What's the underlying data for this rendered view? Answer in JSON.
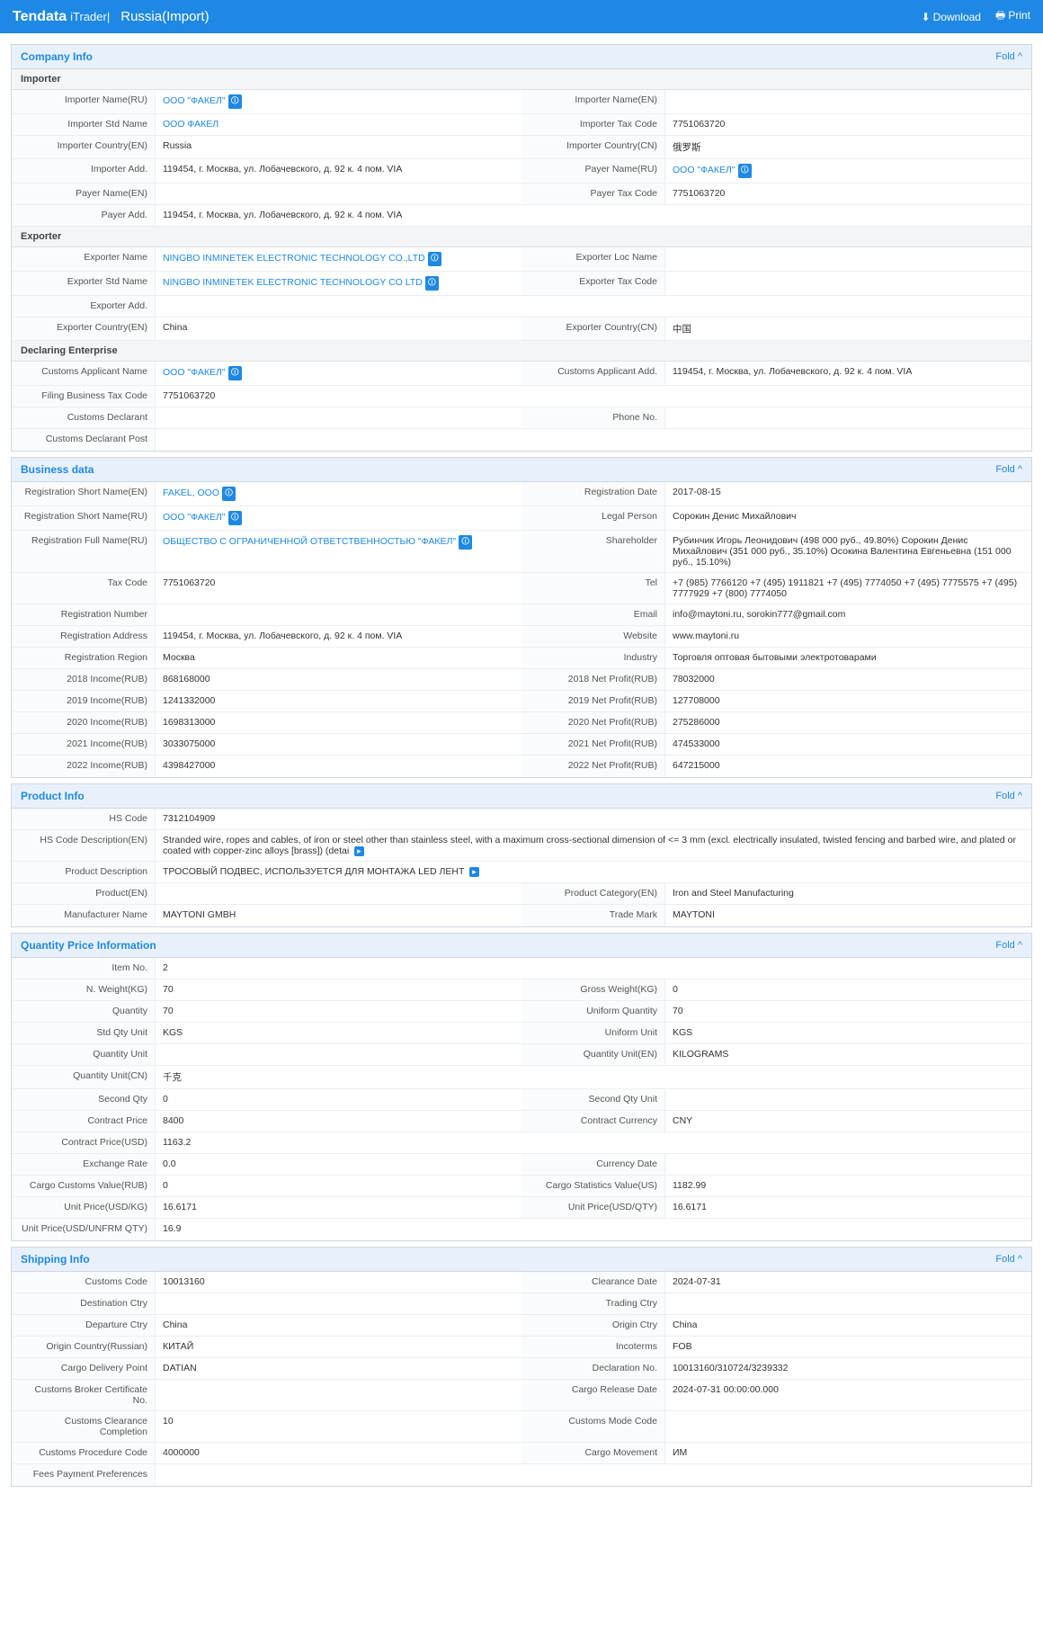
{
  "header": {
    "logo": "Tendata",
    "sublogo": "iTrader|",
    "title": "Russia(Import)",
    "download": "Download",
    "print": "Print"
  },
  "fold": "Fold ^",
  "sections": {
    "companyInfo": "Company Info",
    "businessData": "Business data",
    "productInfo": "Product Info",
    "qtyPrice": "Quantity Price Information",
    "shipping": "Shipping Info"
  },
  "sub": {
    "importer": "Importer",
    "exporter": "Exporter",
    "declaring": "Declaring Enterprise"
  },
  "lbl": {
    "impNameRU": "Importer Name(RU)",
    "impNameEN": "Importer Name(EN)",
    "impStdName": "Importer Std Name",
    "impTaxCode": "Importer Tax Code",
    "impCtryEN": "Importer Country(EN)",
    "impCtryCN": "Importer Country(CN)",
    "impAdd": "Importer Add.",
    "payerNameRU": "Payer Name(RU)",
    "payerNameEN": "Payer Name(EN)",
    "payerTaxCode": "Payer Tax Code",
    "payerAdd": "Payer Add.",
    "expName": "Exporter Name",
    "expLocName": "Exporter Loc Name",
    "expStdName": "Exporter Std Name",
    "expTaxCode": "Exporter Tax Code",
    "expAdd": "Exporter Add.",
    "expCtryEN": "Exporter Country(EN)",
    "expCtryCN": "Exporter Country(CN)",
    "custAppName": "Customs Applicant Name",
    "custAppAdd": "Customs Applicant Add.",
    "filingTax": "Filing Business Tax Code",
    "custDecl": "Customs Declarant",
    "phoneNo": "Phone No.",
    "custDeclPost": "Customs Declarant Post",
    "regShortEN": "Registration Short Name(EN)",
    "regDate": "Registration Date",
    "regShortRU": "Registration Short Name(RU)",
    "legalPerson": "Legal Person",
    "regFullRU": "Registration Full Name(RU)",
    "shareholder": "Shareholder",
    "taxCode": "Tax Code",
    "tel": "Tel",
    "regNum": "Registration Number",
    "email": "Email",
    "regAddr": "Registration Address",
    "website": "Website",
    "regRegion": "Registration Region",
    "industry": "Industry",
    "inc2018": "2018 Income(RUB)",
    "np2018": "2018 Net Profit(RUB)",
    "inc2019": "2019 Income(RUB)",
    "np2019": "2019 Net Profit(RUB)",
    "inc2020": "2020 Income(RUB)",
    "np2020": "2020 Net Profit(RUB)",
    "inc2021": "2021 Income(RUB)",
    "np2021": "2021 Net Profit(RUB)",
    "inc2022": "2022 Income(RUB)",
    "np2022": "2022 Net Profit(RUB)",
    "hsCode": "HS Code",
    "hsDescEN": "HS Code Description(EN)",
    "prodDesc": "Product Description",
    "prodEN": "Product(EN)",
    "prodCatEN": "Product Category(EN)",
    "mfrName": "Manufacturer Name",
    "tradeMark": "Trade Mark",
    "itemNo": "Item No.",
    "nWeight": "N. Weight(KG)",
    "gWeight": "Gross Weight(KG)",
    "qty": "Quantity",
    "uQty": "Uniform Quantity",
    "stdQtyUnit": "Std Qty Unit",
    "uUnit": "Uniform Unit",
    "qtyUnit": "Quantity Unit",
    "qtyUnitEN": "Quantity Unit(EN)",
    "qtyUnitCN": "Quantity Unit(CN)",
    "secQty": "Second Qty",
    "secQtyUnit": "Second Qty Unit",
    "cPrice": "Contract Price",
    "cCurr": "Contract Currency",
    "cPriceUSD": "Contract Price(USD)",
    "exRate": "Exchange Rate",
    "currDate": "Currency Date",
    "ccvRUB": "Cargo Customs Value(RUB)",
    "csvUS": "Cargo Statistics Value(US)",
    "upKG": "Unit Price(USD/KG)",
    "upQTY": "Unit Price(USD/QTY)",
    "upUNFRM": "Unit Price(USD/UNFRM QTY)",
    "custCode": "Customs Code",
    "clearDate": "Clearance Date",
    "destCtry": "Destination Ctry",
    "tradeCtry": "Trading Ctry",
    "depCtry": "Departure Ctry",
    "origCtry": "Origin Ctry",
    "origCtryRU": "Origin Country(Russian)",
    "incoterms": "Incoterms",
    "cargoDeliv": "Cargo Delivery Point",
    "declNo": "Declaration No.",
    "brokerCert": "Customs Broker Certificate No.",
    "cargoRel": "Cargo Release Date",
    "custClear": "Customs Clearance Completion",
    "custMode": "Customs Mode Code",
    "custProc": "Customs Procedure Code",
    "cargoMove": "Cargo Movement",
    "feesPay": "Fees Payment Preferences"
  },
  "val": {
    "impNameRU": "ООО \"ФАКЕЛ\"",
    "impStdName": "ООО ФАКЕЛ",
    "impTaxCode": "7751063720",
    "impCtryEN": "Russia",
    "impCtryCN": "俄罗斯",
    "impAdd": "119454, г. Москва, ул. Лобачевского, д. 92 к. 4 пом. VIA",
    "payerNameRU": "ООО \"ФАКЕЛ\"",
    "payerTaxCode": "7751063720",
    "payerAdd": "119454, г. Москва, ул. Лобачевского, д. 92 к. 4 пом. VIA",
    "expName": "NINGBO INMINETEK ELECTRONIC TECHNOLOGY CO.,LTD",
    "expStdName": "NINGBO INMINETEK ELECTRONIC TECHNOLOGY CO LTD",
    "expCtryEN": "China",
    "expCtryCN": "中国",
    "custAppName": "ООО \"ФАКЕЛ\"",
    "custAppAdd": "119454, г. Москва, ул. Лобачевского, д. 92 к. 4 пом. VIA",
    "filingTax": "7751063720",
    "regShortEN": "FAKEL, OOO",
    "regDate": "2017-08-15",
    "regShortRU": "ООО \"ФАКЕЛ\"",
    "legalPerson": "Сорокин Денис Михайлович",
    "regFullRU": "ОБЩЕСТВО С ОГРАНИЧЕННОЙ ОТВЕТСТВЕННОСТЬЮ \"ФАКЕЛ\"",
    "shareholder": "Рубинчик Игорь Леонидович (498 000 руб., 49.80%) Сорокин Денис Михайлович (351 000 руб., 35.10%) Осокина Валентина Евгеньевна (151 000 руб., 15.10%)",
    "taxCode": "7751063720",
    "tel": "+7 (985) 7766120 +7 (495) 1911821 +7 (495) 7774050 +7 (495) 7775575 +7 (495) 7777929 +7 (800) 7774050",
    "email": "info@maytoni.ru, sorokin777@gmail.com",
    "regAddr": "119454, г. Москва, ул. Лобачевского, д. 92 к. 4 пом. VIA",
    "website": "www.maytoni.ru",
    "regRegion": "Москва",
    "industry": "Торговля оптовая бытовыми электротоварами",
    "inc2018": "868168000",
    "np2018": "78032000",
    "inc2019": "1241332000",
    "np2019": "127708000",
    "inc2020": "1698313000",
    "np2020": "275286000",
    "inc2021": "3033075000",
    "np2021": "474533000",
    "inc2022": "4398427000",
    "np2022": "647215000",
    "hsCode": "7312104909",
    "hsDescEN": "Stranded wire, ropes and cables, of iron or steel other than stainless steel, with a maximum cross-sectional dimension of <= 3 mm (excl. electrically insulated, twisted fencing and barbed wire, and plated or coated with copper-zinc alloys [brass]) (detai",
    "prodDesc": "ТРОСОВЫЙ ПОДВЕС, ИСПОЛЬЗУЕТСЯ ДЛЯ МОНТАЖА LED ЛЕНТ",
    "prodCatEN": "Iron and Steel Manufacturing",
    "mfrName": "MAYTONI GMBH",
    "tradeMark": "MAYTONI",
    "itemNo": "2",
    "nWeight": "70",
    "gWeight": "0",
    "qty": "70",
    "uQty": "70",
    "stdQtyUnit": "KGS",
    "uUnit": "KGS",
    "qtyUnitEN": "KILOGRAMS",
    "qtyUnitCN": "千克",
    "secQty": "0",
    "cPrice": "8400",
    "cCurr": "CNY",
    "cPriceUSD": "1163.2",
    "exRate": "0.0",
    "ccvRUB": "0",
    "csvUS": "1182.99",
    "upKG": "16.6171",
    "upQTY": "16.6171",
    "upUNFRM": "16.9",
    "custCode": "10013160",
    "clearDate": "2024-07-31",
    "depCtry": "China",
    "origCtry": "China",
    "origCtryRU": "КИТАЙ",
    "incoterms": "FOB",
    "cargoDeliv": "DATIAN",
    "declNo": "10013160/310724/3239332",
    "cargoRel": "2024-07-31 00:00:00.000",
    "custClear": "10",
    "custProc": "4000000",
    "cargoMove": "ИМ"
  }
}
